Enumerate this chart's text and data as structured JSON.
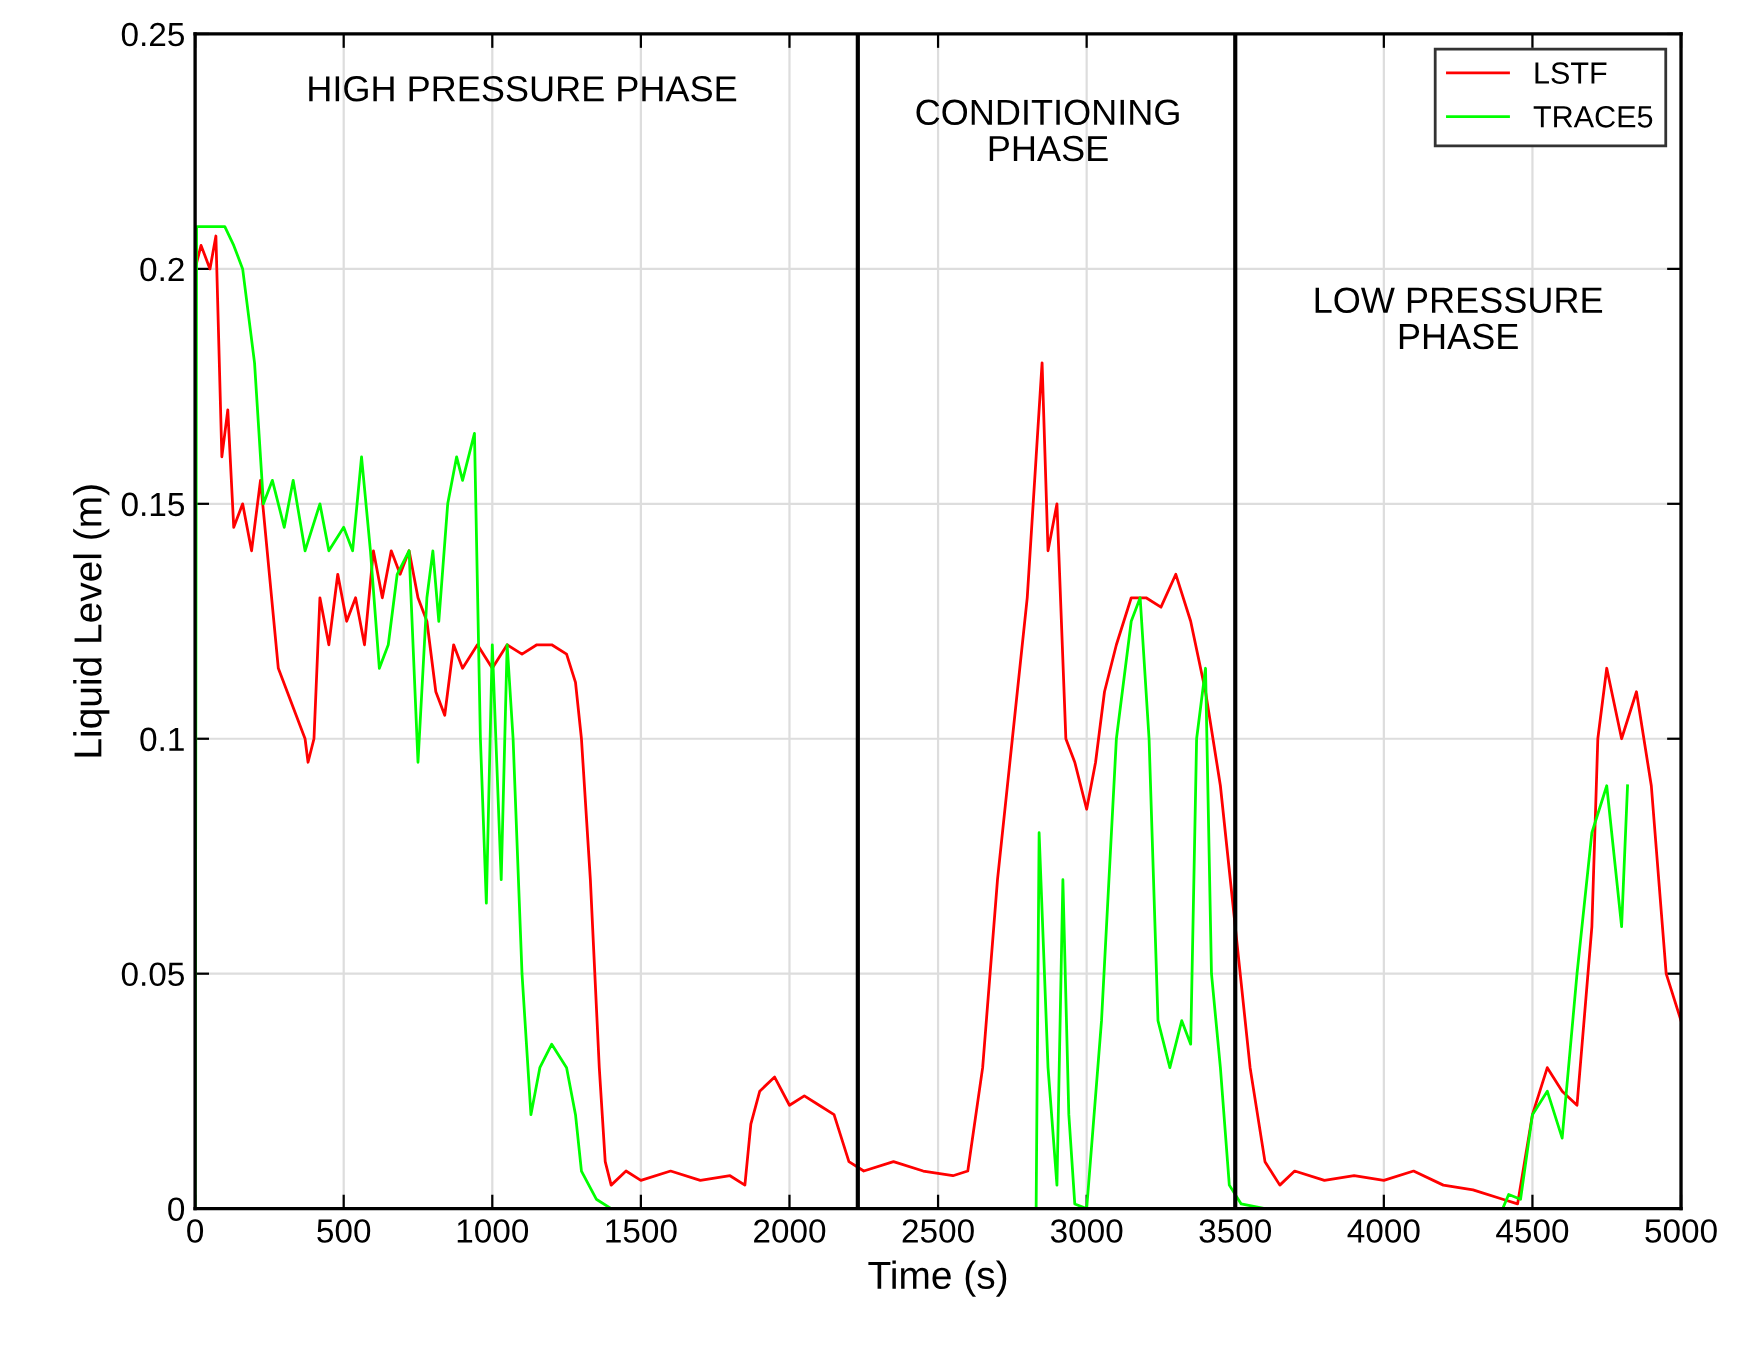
{
  "chart_data": {
    "type": "line",
    "xlabel": "Time (s)",
    "ylabel": "Liquid Level (m)",
    "xlim": [
      0,
      5000
    ],
    "ylim": [
      0,
      0.25
    ],
    "xticks": [
      0,
      500,
      1000,
      1500,
      2000,
      2500,
      3000,
      3500,
      4000,
      4500,
      5000
    ],
    "yticks": [
      0,
      0.05,
      0.1,
      0.15,
      0.2,
      0.25
    ],
    "grid": true,
    "legend": "top right",
    "line_style": "solid",
    "marker": "none",
    "ref_lines": [
      {
        "axis": "x",
        "value": 2230,
        "color": "#000000"
      },
      {
        "axis": "x",
        "value": 3500,
        "color": "#000000"
      }
    ],
    "annotations": [
      "HIGH PRESSURE PHASE",
      "CONDITIONING\nPHASE",
      "LOW PRESSURE\nPHASE"
    ],
    "series": [
      {
        "name": "LSTF",
        "color": "#ff0000",
        "x": [
          0,
          20,
          50,
          70,
          90,
          110,
          130,
          160,
          190,
          220,
          250,
          280,
          310,
          340,
          370,
          380,
          400,
          420,
          450,
          480,
          510,
          540,
          570,
          600,
          630,
          660,
          690,
          720,
          750,
          780,
          810,
          840,
          870,
          900,
          950,
          1000,
          1050,
          1100,
          1150,
          1200,
          1250,
          1280,
          1300,
          1330,
          1360,
          1380,
          1400,
          1450,
          1500,
          1600,
          1700,
          1800,
          1850,
          1870,
          1900,
          1950,
          2000,
          2050,
          2100,
          2150,
          2200,
          2250,
          2350,
          2450,
          2550,
          2600,
          2650,
          2700,
          2750,
          2800,
          2830,
          2850,
          2870,
          2900,
          2930,
          2960,
          3000,
          3030,
          3060,
          3100,
          3150,
          3200,
          3250,
          3300,
          3350,
          3400,
          3450,
          3500,
          3550,
          3600,
          3650,
          3700,
          3800,
          3900,
          4000,
          4100,
          4200,
          4300,
          4400,
          4450,
          4500,
          4550,
          4600,
          4650,
          4700,
          4720,
          4750,
          4800,
          4850,
          4900,
          4950,
          5000
        ],
        "values": [
          0.2,
          0.205,
          0.2,
          0.207,
          0.16,
          0.17,
          0.145,
          0.15,
          0.14,
          0.155,
          0.135,
          0.115,
          0.11,
          0.105,
          0.1,
          0.095,
          0.1,
          0.13,
          0.12,
          0.135,
          0.125,
          0.13,
          0.12,
          0.14,
          0.13,
          0.14,
          0.135,
          0.14,
          0.13,
          0.125,
          0.11,
          0.105,
          0.12,
          0.115,
          0.12,
          0.115,
          0.12,
          0.118,
          0.12,
          0.12,
          0.118,
          0.112,
          0.1,
          0.07,
          0.03,
          0.01,
          0.005,
          0.008,
          0.006,
          0.008,
          0.006,
          0.007,
          0.005,
          0.018,
          0.025,
          0.028,
          0.022,
          0.024,
          0.022,
          0.02,
          0.01,
          0.008,
          0.01,
          0.008,
          0.007,
          0.008,
          0.03,
          0.07,
          0.1,
          0.13,
          0.16,
          0.18,
          0.14,
          0.15,
          0.1,
          0.095,
          0.085,
          0.095,
          0.11,
          0.12,
          0.13,
          0.13,
          0.128,
          0.135,
          0.125,
          0.11,
          0.09,
          0.06,
          0.03,
          0.01,
          0.005,
          0.008,
          0.006,
          0.007,
          0.006,
          0.008,
          0.005,
          0.004,
          0.002,
          0.001,
          0.02,
          0.03,
          0.025,
          0.022,
          0.06,
          0.1,
          0.115,
          0.1,
          0.11,
          0.09,
          0.05,
          0.04
        ]
      },
      {
        "name": "TRACE5",
        "color": "#00ff00",
        "x": [
          0,
          5,
          100,
          130,
          160,
          200,
          230,
          260,
          300,
          330,
          370,
          420,
          450,
          500,
          530,
          560,
          590,
          620,
          650,
          680,
          720,
          750,
          780,
          800,
          820,
          850,
          880,
          900,
          940,
          960,
          980,
          1000,
          1030,
          1050,
          1070,
          1100,
          1130,
          1160,
          1200,
          1250,
          1280,
          1300,
          1350,
          1400,
          2830,
          2840,
          2870,
          2900,
          2920,
          2940,
          2960,
          3000,
          3050,
          3100,
          3150,
          3180,
          3210,
          3240,
          3280,
          3320,
          3350,
          3370,
          3400,
          3420,
          3450,
          3480,
          3520,
          3600,
          4400,
          4420,
          4460,
          4500,
          4550,
          4600,
          4650,
          4700,
          4750,
          4800,
          4820
        ],
        "values": [
          0,
          0.209,
          0.209,
          0.205,
          0.2,
          0.18,
          0.15,
          0.155,
          0.145,
          0.155,
          0.14,
          0.15,
          0.14,
          0.145,
          0.14,
          0.16,
          0.14,
          0.115,
          0.12,
          0.135,
          0.14,
          0.095,
          0.13,
          0.14,
          0.125,
          0.15,
          0.16,
          0.155,
          0.165,
          0.1,
          0.065,
          0.12,
          0.07,
          0.12,
          0.1,
          0.05,
          0.02,
          0.03,
          0.035,
          0.03,
          0.02,
          0.008,
          0.002,
          0,
          0,
          0.08,
          0.03,
          0.005,
          0.07,
          0.02,
          0.001,
          0,
          0.04,
          0.1,
          0.125,
          0.13,
          0.1,
          0.04,
          0.03,
          0.04,
          0.035,
          0.1,
          0.115,
          0.05,
          0.03,
          0.005,
          0.001,
          0,
          0,
          0.003,
          0.002,
          0.02,
          0.025,
          0.015,
          0.05,
          0.08,
          0.09,
          0.06,
          0.09
        ]
      }
    ]
  }
}
